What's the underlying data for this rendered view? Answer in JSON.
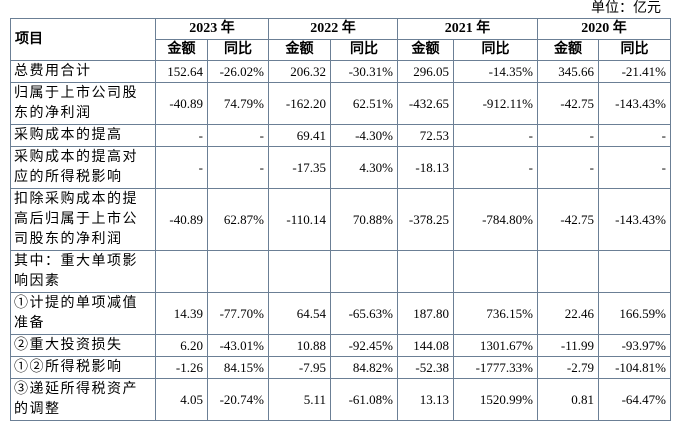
{
  "unit": "单位：亿元",
  "table": {
    "item_header": "项目",
    "years": [
      "2023 年",
      "2022 年",
      "2021 年",
      "2020 年"
    ],
    "sub_headers": [
      "金额",
      "同比"
    ],
    "rows": [
      {
        "label": "总费用合计",
        "cells": [
          "152.64",
          "-26.02%",
          "206.32",
          "-30.31%",
          "296.05",
          "-14.35%",
          "345.66",
          "-21.41%"
        ]
      },
      {
        "label": "归属于上市公司股东的净利润",
        "cells": [
          "-40.89",
          "74.79%",
          "-162.20",
          "62.51%",
          "-432.65",
          "-912.11%",
          "-42.75",
          "-143.43%"
        ]
      },
      {
        "label": "采购成本的提高",
        "cells": [
          "-",
          "-",
          "69.41",
          "-4.30%",
          "72.53",
          "-",
          "-",
          "-"
        ]
      },
      {
        "label": "采购成本的提高对应的所得税影响",
        "cells": [
          "-",
          "-",
          "-17.35",
          "4.30%",
          "-18.13",
          "-",
          "-",
          "-"
        ]
      },
      {
        "label": "扣除采购成本的提高后归属于上市公司股东的净利润",
        "cells": [
          "-40.89",
          "62.87%",
          "-110.14",
          "70.88%",
          "-378.25",
          "-784.80%",
          "-42.75",
          "-143.43%"
        ]
      },
      {
        "label": "其中：重大单项影响因素"
      },
      {
        "label": "①计提的单项减值准备",
        "cells": [
          "14.39",
          "-77.70%",
          "64.54",
          "-65.63%",
          "187.80",
          "736.15%",
          "22.46",
          "166.59%"
        ]
      },
      {
        "label": "②重大投资损失",
        "cells": [
          "6.20",
          "-43.01%",
          "10.88",
          "-92.45%",
          "144.08",
          "1301.67%",
          "-11.99",
          "-93.97%"
        ]
      },
      {
        "label": "①②所得税影响",
        "cells": [
          "-1.26",
          "84.15%",
          "-7.95",
          "84.82%",
          "-52.38",
          "-1777.33%",
          "-2.79",
          "-104.81%"
        ]
      },
      {
        "label": "③递延所得税资产的调整",
        "cells": [
          "4.05",
          "-20.74%",
          "5.11",
          "-61.08%",
          "13.13",
          "1520.99%",
          "0.81",
          "-64.47%"
        ]
      }
    ]
  }
}
